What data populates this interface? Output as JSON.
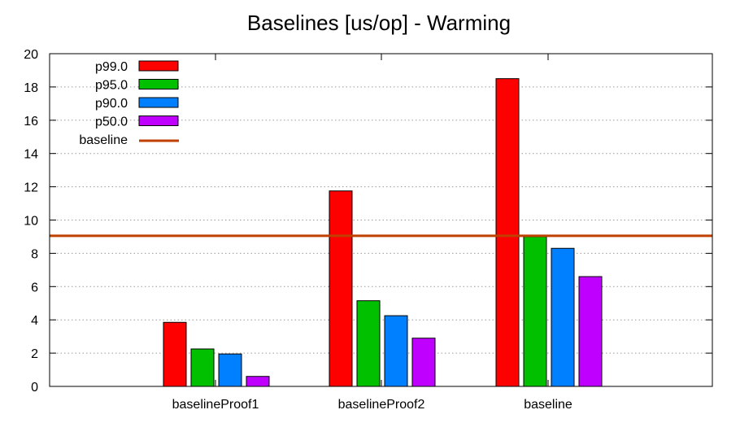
{
  "chart_data": {
    "type": "bar",
    "title": "Baselines [us/op] - Warming",
    "xlabel": "",
    "ylabel": "",
    "ylim": [
      0,
      20
    ],
    "yticks": [
      0,
      2,
      4,
      6,
      8,
      10,
      12,
      14,
      16,
      18,
      20
    ],
    "grid": true,
    "legend_position": "top-left",
    "categories": [
      "baselineProof1",
      "baselineProof2",
      "baseline"
    ],
    "series": [
      {
        "name": "p99.0",
        "color": "#ff0000",
        "values": [
          3.85,
          11.75,
          18.5
        ]
      },
      {
        "name": "p95.0",
        "color": "#00c000",
        "values": [
          2.25,
          5.15,
          9.0
        ]
      },
      {
        "name": "p90.0",
        "color": "#0080ff",
        "values": [
          1.95,
          4.25,
          8.3
        ]
      },
      {
        "name": "p50.0",
        "color": "#c000ff",
        "values": [
          0.6,
          2.9,
          6.6
        ]
      }
    ],
    "reference_line": {
      "name": "baseline",
      "value": 9.05,
      "color": "#c04000"
    }
  }
}
